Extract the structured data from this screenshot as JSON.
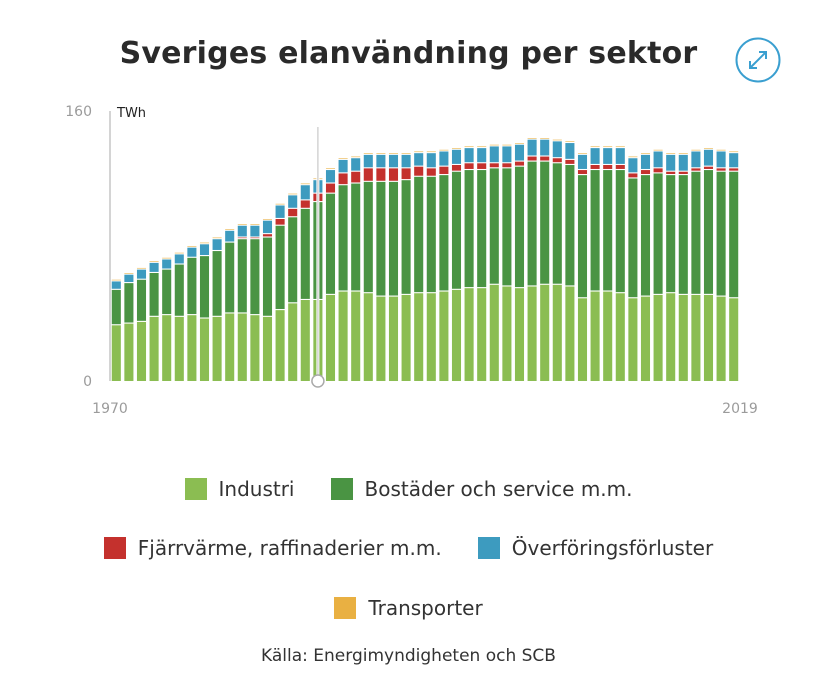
{
  "title": "Sveriges elanvändning per sektor",
  "source": "Källa: Energimyndigheten och SCB",
  "icons": {
    "expand": "expand-arrows-icon"
  },
  "colors": {
    "industri": "#8bbd52",
    "bostader": "#4a9443",
    "fjarrvarme": "#c4312d",
    "overforing": "#3d9bbf",
    "transporter": "#e9b042",
    "expand": "#3a9fd0"
  },
  "chart_data": {
    "type": "bar",
    "stacked": true,
    "title": "Sveriges elanvändning per sektor",
    "unit_label": "TWh",
    "ylabel": "TWh",
    "ylim": [
      0,
      160
    ],
    "y_ticks": [
      0,
      160
    ],
    "x_ticks": [
      "1970",
      "2019"
    ],
    "grid": false,
    "categories": [
      "1970",
      "1971",
      "1972",
      "1973",
      "1974",
      "1975",
      "1976",
      "1977",
      "1978",
      "1979",
      "1980",
      "1981",
      "1982",
      "1983",
      "1984",
      "1985",
      "1986",
      "1987",
      "1988",
      "1989",
      "1990",
      "1991",
      "1992",
      "1993",
      "1994",
      "1995",
      "1996",
      "1997",
      "1998",
      "1999",
      "2000",
      "2001",
      "2002",
      "2003",
      "2004",
      "2005",
      "2006",
      "2007",
      "2008",
      "2009",
      "2010",
      "2011",
      "2012",
      "2013",
      "2014",
      "2015",
      "2016",
      "2017",
      "2018",
      "2019"
    ],
    "series": [
      {
        "name": "Industri",
        "key": "industri",
        "values": [
          33,
          34,
          35,
          38,
          39,
          38,
          39,
          37,
          38,
          40,
          40,
          39,
          38,
          42,
          46,
          48,
          48,
          51,
          53,
          53,
          52,
          50,
          50,
          51,
          52,
          52,
          53,
          54,
          55,
          55,
          57,
          56,
          55,
          56,
          57,
          57,
          56,
          49,
          53,
          53,
          52,
          49,
          50,
          51,
          52,
          51,
          51,
          51,
          50,
          49
        ]
      },
      {
        "name": "Bostäder och service m.m.",
        "key": "bostader",
        "values": [
          21,
          24,
          25,
          26,
          27,
          31,
          34,
          37,
          39,
          42,
          44,
          45,
          47,
          50,
          51,
          54,
          58,
          60,
          63,
          64,
          66,
          68,
          68,
          68,
          69,
          69,
          69,
          70,
          70,
          70,
          69,
          70,
          72,
          74,
          73,
          72,
          72,
          73,
          72,
          72,
          73,
          71,
          72,
          72,
          70,
          71,
          73,
          74,
          74,
          75
        ]
      },
      {
        "name": "Fjärrvärme, raffinaderier m.m.",
        "key": "fjarrvarme",
        "values": [
          0,
          0,
          0,
          0,
          0,
          0,
          0,
          0,
          0,
          0,
          1,
          1,
          2,
          4,
          5,
          5,
          5,
          6,
          7,
          7,
          8,
          8,
          8,
          7,
          6,
          5,
          5,
          4,
          4,
          4,
          3,
          3,
          3,
          3,
          3,
          3,
          3,
          3,
          3,
          3,
          3,
          3,
          3,
          3,
          2,
          2,
          2,
          2,
          2,
          2
        ]
      },
      {
        "name": "Överföringsförluster",
        "key": "overforing",
        "values": [
          5,
          5,
          6,
          6,
          6,
          6,
          6,
          7,
          7,
          7,
          7,
          7,
          8,
          8,
          8,
          9,
          8,
          8,
          8,
          8,
          8,
          8,
          8,
          8,
          8,
          9,
          9,
          9,
          9,
          9,
          10,
          10,
          10,
          10,
          10,
          10,
          10,
          9,
          10,
          10,
          10,
          9,
          9,
          10,
          10,
          10,
          10,
          10,
          10,
          9
        ]
      },
      {
        "name": "Transporter",
        "key": "transporter",
        "values": [
          1,
          1,
          1,
          1,
          1,
          1,
          1,
          1,
          1,
          1,
          1,
          1,
          1,
          1,
          1,
          1,
          1,
          1,
          1,
          1,
          1,
          1,
          1,
          1,
          1,
          1,
          1,
          1,
          1,
          1,
          1,
          1,
          1,
          1,
          1,
          1,
          1,
          1,
          1,
          1,
          1,
          1,
          1,
          1,
          1,
          1,
          1,
          1,
          1,
          1
        ]
      }
    ]
  }
}
